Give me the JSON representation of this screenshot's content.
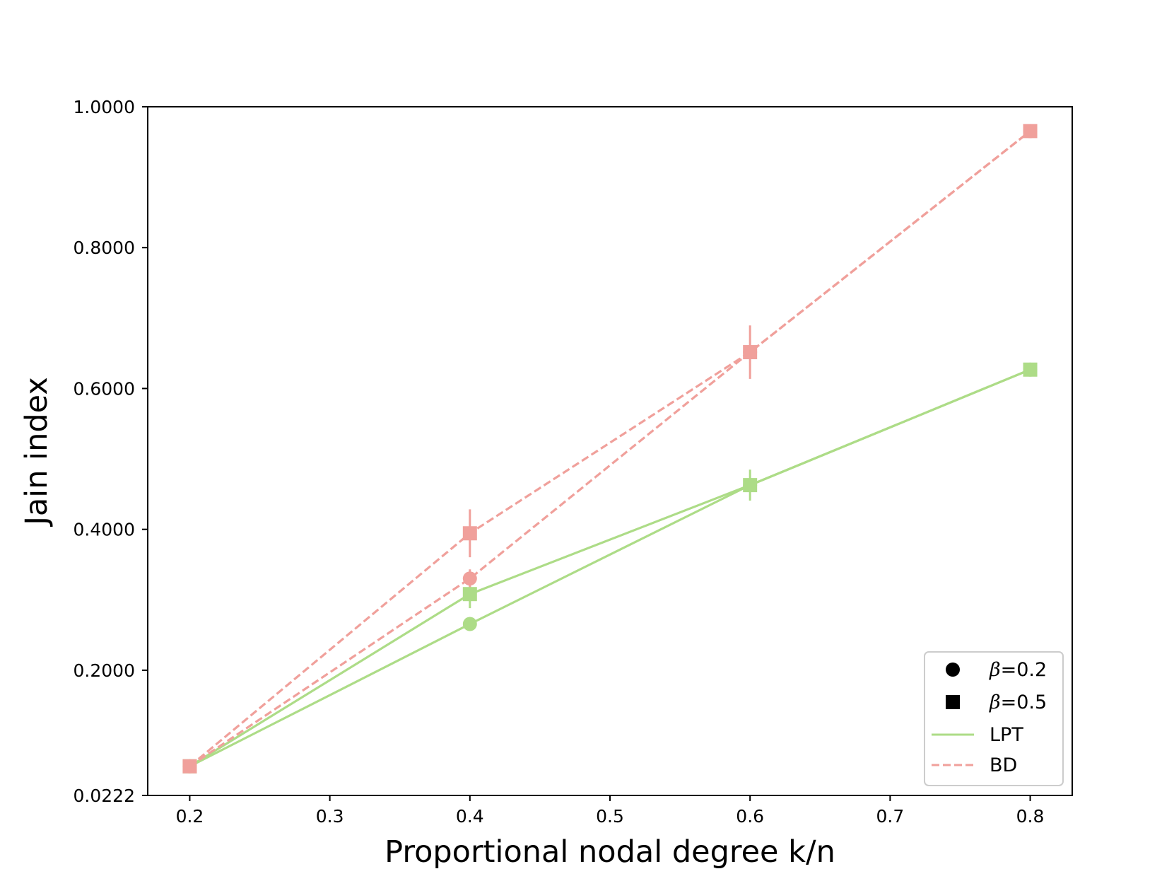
{
  "chart_data": {
    "type": "line",
    "title": "",
    "xlabel": "Proportional nodal degree k/n",
    "ylabel": "Jain index",
    "xlim": [
      0.17,
      0.83
    ],
    "ylim": [
      0.0222,
      1.0
    ],
    "xticks": [
      0.2,
      0.3,
      0.4,
      0.5,
      0.6,
      0.7,
      0.8
    ],
    "xtick_labels": [
      "0.2",
      "0.3",
      "0.4",
      "0.5",
      "0.6",
      "0.7",
      "0.8"
    ],
    "yticks": [
      0.0222,
      0.2,
      0.4,
      0.6,
      0.8,
      1.0
    ],
    "ytick_labels": [
      "0.0222",
      "0.2000",
      "0.4000",
      "0.6000",
      "0.8000",
      "1.0000"
    ],
    "grid": false,
    "legend_position": "bottom-right",
    "legend": [
      {
        "kind": "marker",
        "marker": "circle",
        "symbol": "β",
        "label": "=0.2"
      },
      {
        "kind": "marker",
        "marker": "square",
        "symbol": "β",
        "label": "=0.5"
      },
      {
        "kind": "line",
        "style": "solid",
        "color": "#addc87",
        "label": "LPT"
      },
      {
        "kind": "line",
        "style": "dashed",
        "color": "#f0a09b",
        "label": "BD"
      }
    ],
    "series": [
      {
        "method": "LPT",
        "beta": 0.2,
        "color": "#addc87",
        "style": "solid",
        "marker": "circle",
        "x": [
          0.2,
          0.4,
          0.6,
          0.8
        ],
        "y": [
          0.0636,
          0.2656,
          0.4628,
          0.6268
        ],
        "err": [
          0.0,
          0.0,
          0.0,
          0.0
        ]
      },
      {
        "method": "LPT",
        "beta": 0.5,
        "color": "#addc87",
        "style": "solid",
        "marker": "square",
        "x": [
          0.2,
          0.4,
          0.6,
          0.8
        ],
        "y": [
          0.0636,
          0.3081,
          0.4628,
          0.6268
        ],
        "err": [
          0.0,
          0.02,
          0.022,
          0.0
        ]
      },
      {
        "method": "BD",
        "beta": 0.2,
        "color": "#f0a09b",
        "style": "dashed",
        "marker": "circle",
        "x": [
          0.2,
          0.4,
          0.6,
          0.8
        ],
        "y": [
          0.0636,
          0.3302,
          0.6516,
          0.9655
        ],
        "err": [
          0.0,
          0.013,
          0.0,
          0.0
        ]
      },
      {
        "method": "BD",
        "beta": 0.5,
        "color": "#f0a09b",
        "style": "dashed",
        "marker": "square",
        "x": [
          0.2,
          0.4,
          0.6,
          0.8
        ],
        "y": [
          0.0636,
          0.3944,
          0.6516,
          0.9655
        ],
        "err": [
          0.0,
          0.034,
          0.038,
          0.0
        ]
      }
    ]
  }
}
